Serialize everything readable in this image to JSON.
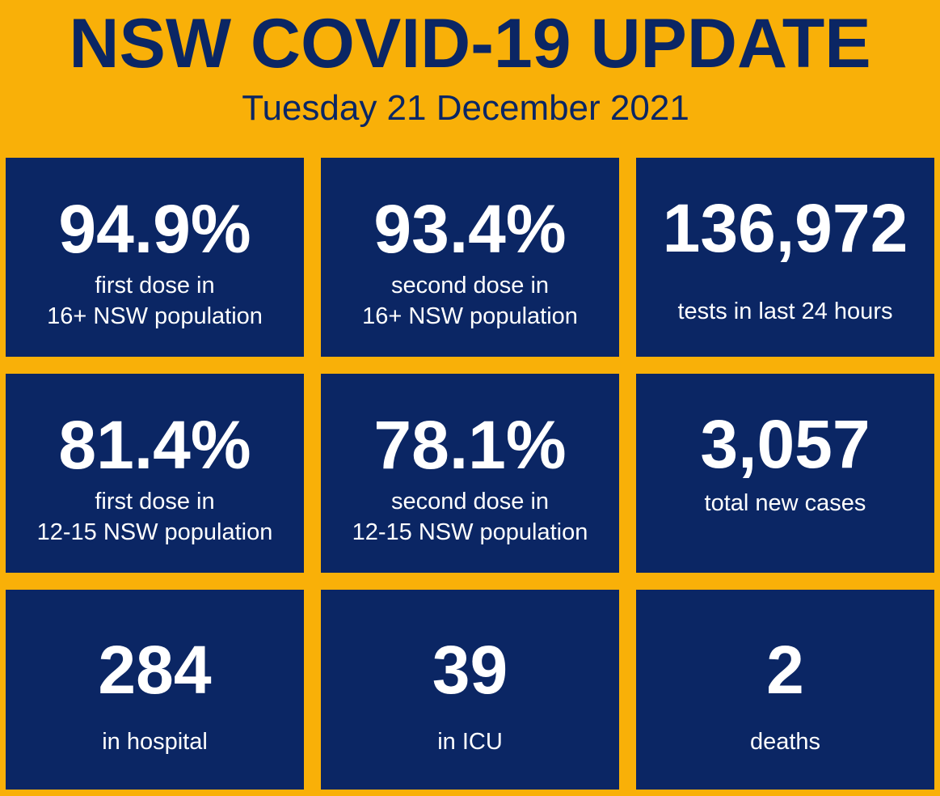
{
  "header": {
    "title": "NSW COVID-19 UPDATE",
    "date": "Tuesday 21 December 2021"
  },
  "colors": {
    "background": "#F9B008",
    "tile": "#0B2664",
    "title_text": "#0B2664",
    "tile_text": "#FFFFFF"
  },
  "stats": [
    {
      "value": "94.9%",
      "label_lines": [
        "first dose in",
        "16+ NSW population"
      ]
    },
    {
      "value": "93.4%",
      "label_lines": [
        "second dose in",
        "16+ NSW population"
      ]
    },
    {
      "value": "136,972",
      "label_lines": [
        "tests in last 24 hours"
      ]
    },
    {
      "value": "81.4%",
      "label_lines": [
        "first dose in",
        "12-15 NSW population"
      ]
    },
    {
      "value": "78.1%",
      "label_lines": [
        "second dose in",
        "12-15 NSW population"
      ]
    },
    {
      "value": "3,057",
      "label_lines": [
        "total new cases"
      ]
    },
    {
      "value": "284",
      "label_lines": [
        "in hospital"
      ]
    },
    {
      "value": "39",
      "label_lines": [
        "in ICU"
      ]
    },
    {
      "value": "2",
      "label_lines": [
        "deaths"
      ]
    }
  ]
}
